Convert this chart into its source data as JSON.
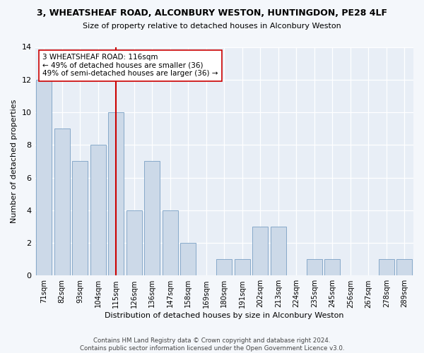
{
  "title": "3, WHEATSHEAF ROAD, ALCONBURY WESTON, HUNTINGDON, PE28 4LF",
  "subtitle": "Size of property relative to detached houses in Alconbury Weston",
  "xlabel": "Distribution of detached houses by size in Alconbury Weston",
  "ylabel": "Number of detached properties",
  "categories": [
    "71sqm",
    "82sqm",
    "93sqm",
    "104sqm",
    "115sqm",
    "126sqm",
    "136sqm",
    "147sqm",
    "158sqm",
    "169sqm",
    "180sqm",
    "191sqm",
    "202sqm",
    "213sqm",
    "224sqm",
    "235sqm",
    "245sqm",
    "256sqm",
    "267sqm",
    "278sqm",
    "289sqm"
  ],
  "values": [
    12,
    9,
    7,
    8,
    10,
    4,
    7,
    4,
    2,
    0,
    1,
    1,
    3,
    3,
    0,
    1,
    1,
    0,
    0,
    1,
    1
  ],
  "bar_color": "#ccd9e8",
  "bar_edge_color": "#7aa0c4",
  "highlight_index": 4,
  "highlight_color": "#cc0000",
  "annotation_text": "3 WHEATSHEAF ROAD: 116sqm\n← 49% of detached houses are smaller (36)\n49% of semi-detached houses are larger (36) →",
  "annotation_box_color": "#ffffff",
  "annotation_box_edge_color": "#cc0000",
  "ylim": [
    0,
    14
  ],
  "yticks": [
    0,
    2,
    4,
    6,
    8,
    10,
    12,
    14
  ],
  "footer": "Contains HM Land Registry data © Crown copyright and database right 2024.\nContains public sector information licensed under the Open Government Licence v3.0.",
  "bg_color": "#f4f7fb",
  "plot_bg_color": "#e8eef6"
}
